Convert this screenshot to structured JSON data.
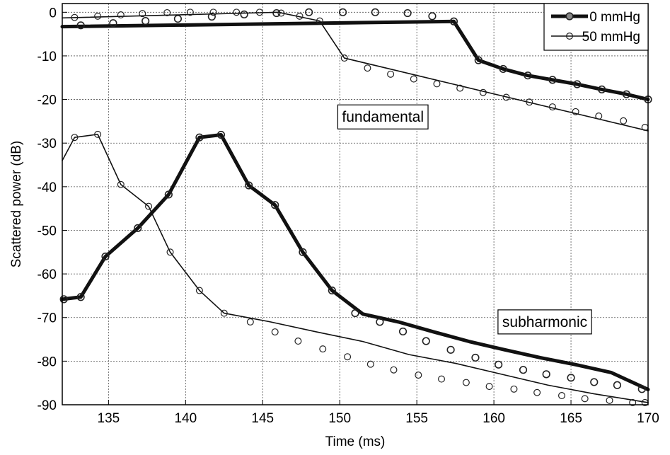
{
  "chart_data": {
    "type": "line",
    "title": "",
    "xlabel": "Time (ms)",
    "ylabel": "Scattered power (dB)",
    "xlim": [
      132,
      170
    ],
    "ylim": [
      -90,
      2
    ],
    "xticks": [
      135,
      140,
      145,
      150,
      155,
      160,
      165,
      170
    ],
    "yticks": [
      0,
      -10,
      -20,
      -30,
      -40,
      -50,
      -60,
      -70,
      -80,
      -90
    ],
    "grid": true,
    "legend_position": "top-right",
    "legend": [
      "0 mmHg",
      "50 mmHg"
    ],
    "annotations": [
      {
        "text": "fundamental",
        "x": 152.8,
        "y": -24
      },
      {
        "text": "subharmonic",
        "x": 163.3,
        "y": -71
      }
    ],
    "series": [
      {
        "name": "0 mmHg",
        "group": "fundamental",
        "style": "thick",
        "x": [
          132,
          157.4,
          159,
          160.6,
          162.2,
          163.8,
          165.4,
          167,
          168.6,
          170
        ],
        "y": [
          -3.3,
          -2.1,
          -11,
          -13,
          -14.5,
          -15.5,
          -16.5,
          -17.7,
          -18.8,
          -20
        ],
        "marker_x": [
          133.2,
          135.3,
          137.4,
          139.5,
          141.7,
          143.8,
          145.9,
          148,
          150.2,
          152.3,
          154.4,
          156,
          157.4,
          159,
          160.6,
          162.2,
          163.8,
          165.4,
          167,
          168.6,
          170
        ],
        "marker_y": [
          -3,
          -2.5,
          -2,
          -1.5,
          -1,
          -0.5,
          -0.2,
          0,
          0,
          0,
          -0.2,
          -0.9,
          -2.1,
          -11,
          -13,
          -14.5,
          -15.5,
          -16.5,
          -17.7,
          -18.8,
          -20
        ]
      },
      {
        "name": "50 mmHg",
        "group": "fundamental",
        "style": "thin",
        "x": [
          132,
          146,
          148.7,
          150.3,
          170
        ],
        "y": [
          -1.3,
          0,
          -2,
          -10.5,
          -27.2
        ],
        "marker_x": [
          132.8,
          134.3,
          135.8,
          137.2,
          138.8,
          140.3,
          141.8,
          143.3,
          144.8,
          146.2,
          147.4,
          148.7,
          150.3,
          151.8,
          153.3,
          154.8,
          156.3,
          157.8,
          159.3,
          160.8,
          162.3,
          163.8,
          165.3,
          166.8,
          168.4,
          169.8
        ],
        "marker_y": [
          -1.2,
          -0.9,
          -0.6,
          -0.3,
          -0.1,
          0,
          0,
          0,
          0,
          -0.2,
          -0.9,
          -2,
          -10.5,
          -12.8,
          -14.2,
          -15.3,
          -16.4,
          -17.4,
          -18.4,
          -19.5,
          -20.6,
          -21.7,
          -22.8,
          -23.8,
          -24.9,
          -26.4
        ]
      },
      {
        "name": "0 mmHg",
        "group": "subharmonic",
        "style": "thick",
        "x": [
          132,
          133.2,
          134.8,
          136.9,
          138.9,
          140.9,
          142.3,
          144.1,
          145.8,
          147.6,
          149.5,
          151.5,
          153.8,
          156.1,
          158.4,
          160.7,
          163,
          165.3,
          167.6,
          170
        ],
        "y": [
          -65.8,
          -65.3,
          -56,
          -49.5,
          -41.8,
          -28.7,
          -28.1,
          -39.7,
          -44.2,
          -55,
          -63.8,
          -69.2,
          -71,
          -73.3,
          -75.5,
          -77.4,
          -79.2,
          -80.8,
          -82.6,
          -86.5
        ],
        "marker_x": [
          132.1,
          133.2,
          134.8,
          136.9,
          138.9,
          140.9,
          142.3,
          144.1,
          145.8,
          147.6,
          149.5,
          151,
          152.6,
          154.1,
          155.6,
          157.2,
          158.8,
          160.3,
          161.9,
          163.4,
          165,
          166.5,
          168,
          169.6
        ],
        "marker_y": [
          -65.8,
          -65.3,
          -56,
          -49.5,
          -41.8,
          -28.7,
          -28.1,
          -39.7,
          -44.2,
          -55,
          -63.8,
          -69,
          -71,
          -73.2,
          -75.4,
          -77.4,
          -79.2,
          -80.8,
          -82,
          -83,
          -83.8,
          -84.8,
          -85.5,
          -86.4
        ]
      },
      {
        "name": "50 mmHg",
        "group": "subharmonic",
        "style": "thin",
        "x": [
          132,
          132.8,
          134.3,
          135.8,
          137.6,
          139,
          140.9,
          142.5,
          145.5,
          148.5,
          151.5,
          154.5,
          157.5,
          160.5,
          163.5,
          166.5,
          170
        ],
        "y": [
          -34,
          -28.7,
          -28,
          -39.5,
          -44.5,
          -55,
          -63.8,
          -69,
          -71,
          -73.3,
          -75.5,
          -78.5,
          -80.5,
          -83,
          -85.5,
          -87.5,
          -89.5
        ],
        "marker_x": [
          132.8,
          134.3,
          135.8,
          137.6,
          139,
          140.9,
          142.5,
          144.2,
          145.8,
          147.3,
          148.9,
          150.5,
          152,
          153.5,
          155.1,
          156.6,
          158.2,
          159.7,
          161.3,
          162.8,
          164.4,
          165.9,
          167.5,
          169,
          169.8
        ],
        "marker_y": [
          -28.7,
          -28,
          -39.5,
          -44.5,
          -55,
          -63.8,
          -69,
          -71,
          -73.3,
          -75.4,
          -77.2,
          -79,
          -80.7,
          -82,
          -83.2,
          -84.1,
          -84.9,
          -85.8,
          -86.4,
          -87.2,
          -87.9,
          -88.6,
          -89,
          -89.5,
          -89.5
        ]
      }
    ]
  }
}
